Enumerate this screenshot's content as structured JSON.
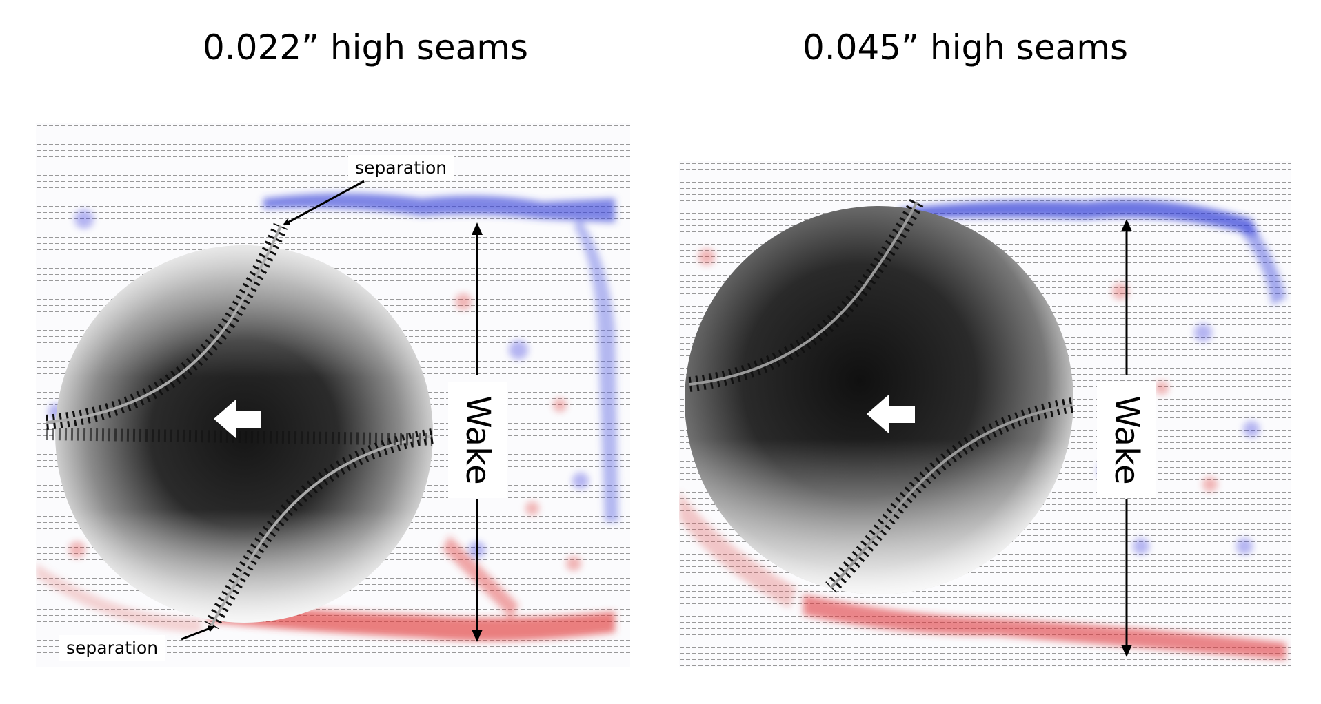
{
  "panels": [
    {
      "title": "0.022” high seams"
    },
    {
      "title": "0.045” high seams"
    }
  ],
  "annotations": {
    "separation_top": "separation",
    "separation_bottom": "separation",
    "wake_left": "Wake",
    "wake_right": "Wake"
  },
  "colors": {
    "positive_vorticity": "#e03c3c",
    "negative_vorticity": "#3c3ce0",
    "vectors": "#333333",
    "ball_dark": "#1e1e1e",
    "ball_light": "#f2f2f2"
  }
}
